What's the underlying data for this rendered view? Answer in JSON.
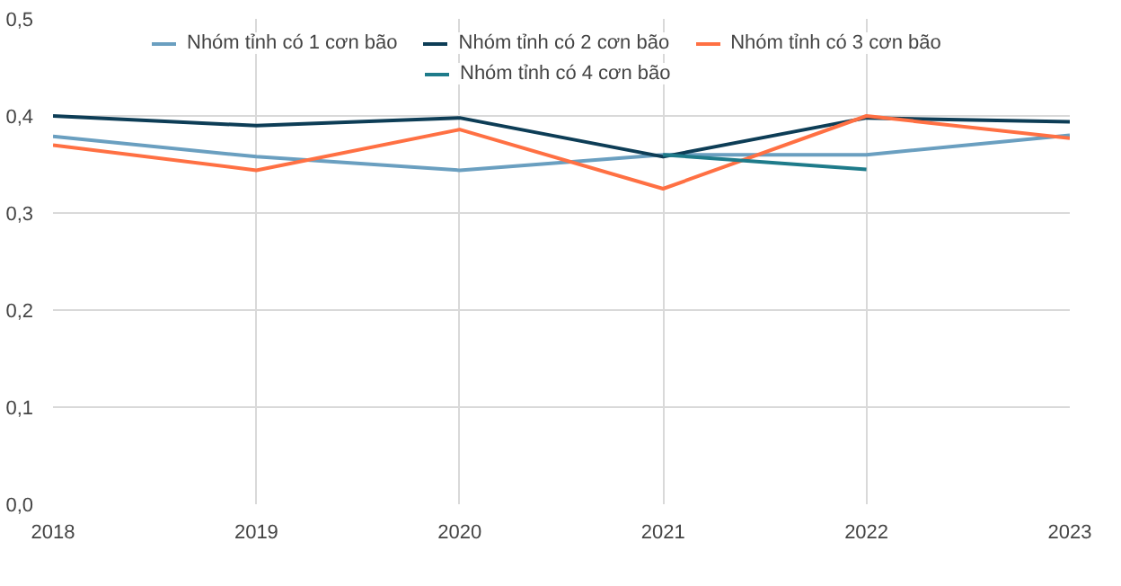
{
  "chart_data": {
    "type": "line",
    "x": [
      2018,
      2019,
      2020,
      2021,
      2022,
      2023
    ],
    "series": [
      {
        "name": "Nhóm tỉnh có 1 cơn bão",
        "color": "#6a9fc0",
        "values": [
          0.379,
          0.358,
          0.344,
          0.36,
          0.36,
          0.38
        ]
      },
      {
        "name": "Nhóm tỉnh có 2 cơn bão",
        "color": "#0d3d56",
        "values": [
          0.4,
          0.39,
          0.398,
          0.358,
          0.398,
          0.394
        ]
      },
      {
        "name": "Nhóm tỉnh có 3 cơn bão",
        "color": "#ff7043",
        "values": [
          0.37,
          0.344,
          0.386,
          0.325,
          0.4,
          0.377
        ]
      },
      {
        "name": "Nhóm tỉnh có 4 cơn bão",
        "color": "#1e7b8a",
        "values": [
          null,
          null,
          null,
          0.36,
          0.345,
          null
        ]
      }
    ],
    "xlim": [
      2018,
      2023
    ],
    "xticks": [
      2018,
      2019,
      2020,
      2021,
      2022,
      2023
    ],
    "ylim": [
      0,
      0.5
    ],
    "yticks": [
      {
        "value": 0,
        "label": "0,0"
      },
      {
        "value": 0.1,
        "label": "0,1"
      },
      {
        "value": 0.2,
        "label": "0,2"
      },
      {
        "value": 0.3,
        "label": "0,3"
      },
      {
        "value": 0.4,
        "label": "0,4"
      },
      {
        "value": 0.5,
        "label": "0,5"
      }
    ],
    "grid": true,
    "legend": "top",
    "line_style": "solid"
  }
}
